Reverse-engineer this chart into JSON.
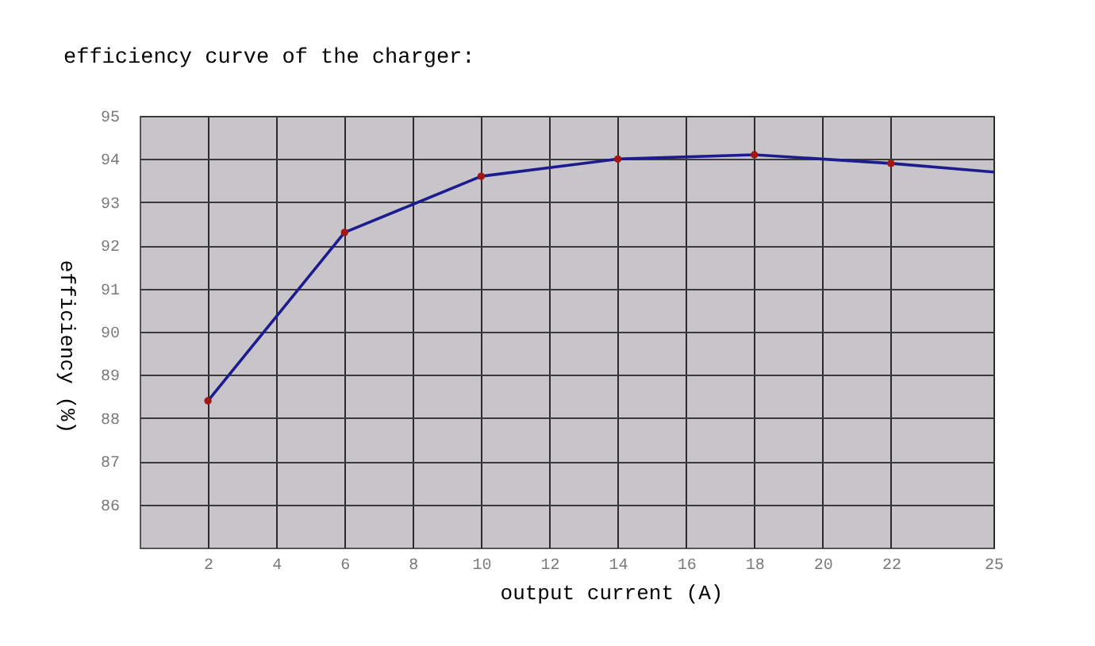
{
  "chart_data": {
    "type": "line",
    "title": "efficiency curve of the charger:",
    "xlabel": "output current (A)",
    "ylabel": "efficiency (%)",
    "series": [
      {
        "color": "#1c1c8e",
        "x": [
          2,
          6,
          10,
          14,
          18,
          22,
          25
        ],
        "values": [
          88.4,
          92.3,
          93.6,
          94.0,
          94.1,
          93.9,
          93.7
        ],
        "marker": "none",
        "line_style": "solid"
      },
      {
        "type": "scatter",
        "color": "#a01818",
        "x": [
          2,
          6,
          10,
          14,
          18,
          22
        ],
        "values": [
          88.4,
          92.3,
          93.6,
          94.0,
          94.1,
          93.9
        ],
        "marker": "circle"
      }
    ],
    "xlim": [
      0,
      25
    ],
    "xticks": [
      2,
      4,
      6,
      8,
      10,
      12,
      14,
      16,
      18,
      20,
      22,
      25
    ],
    "ylim": [
      85,
      95
    ],
    "yticks": [
      86,
      87,
      88,
      89,
      90,
      91,
      92,
      93,
      94,
      95
    ],
    "grid": true
  }
}
